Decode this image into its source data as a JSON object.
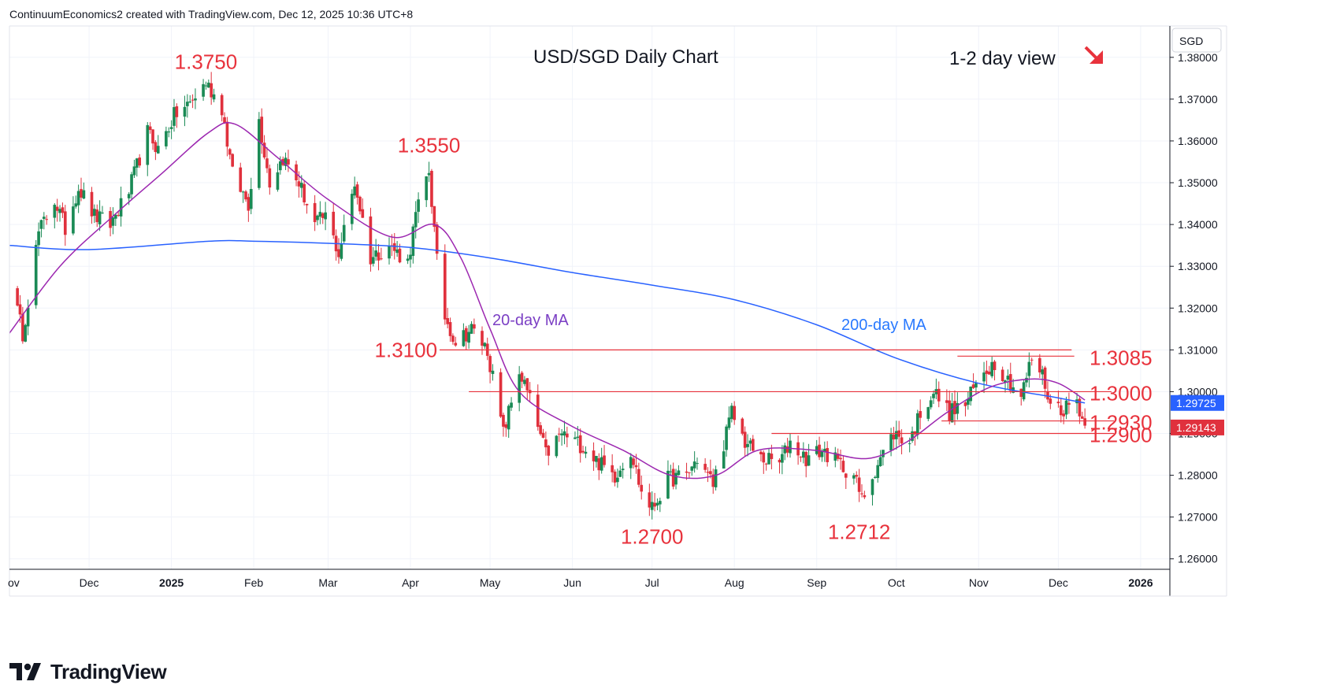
{
  "header": {
    "text": "ContinuumEconomics2 created with TradingView.com, Dec 12, 2025 10:36 UTC+8"
  },
  "footer": {
    "brand": "TradingView"
  },
  "colors": {
    "up": "#1a8a55",
    "down": "#e0313d",
    "ma20": "#9c27b0",
    "ma200": "#2962ff",
    "level": "#e8323c",
    "grid": "#f0f3fa"
  },
  "chart_data": {
    "type": "candlestick",
    "title": "USD/SGD Daily Chart",
    "view_label": "1-2 day view",
    "view_icon": "arrow-down-right-icon",
    "currency": "SGD",
    "ylim": [
      1.2575,
      1.3875
    ],
    "y_ticks": [
      "1.38000",
      "1.37000",
      "1.36000",
      "1.35000",
      "1.34000",
      "1.33000",
      "1.32000",
      "1.31000",
      "1.30000",
      "1.29000",
      "1.28000",
      "1.27000",
      "1.26000"
    ],
    "x_ticks": [
      "ov",
      "Dec",
      "2025",
      "Feb",
      "Mar",
      "Apr",
      "May",
      "Jun",
      "Jul",
      "Aug",
      "Sep",
      "Oct",
      "Nov",
      "Dec",
      "2026"
    ],
    "x_range": [
      "2024-11-01",
      "2026-01-12"
    ],
    "price_badges": [
      {
        "value": "1.29725",
        "color": "#2962ff"
      },
      {
        "value": "1.29143",
        "color": "#e0313d"
      }
    ],
    "levels": [
      {
        "label": "1.3100",
        "value": 1.31,
        "x_from": "2025-04-12",
        "x_to": "2025-12-06",
        "label_side": "left"
      },
      {
        "label": "1.3085",
        "value": 1.3085,
        "x_from": "2025-10-24",
        "x_to": "2025-12-07",
        "label_side": "right"
      },
      {
        "label": "1.3000",
        "value": 1.3,
        "x_from": "2025-04-23",
        "x_to": "2025-12-21",
        "label_side": "right"
      },
      {
        "label": "1.2930",
        "value": 1.293,
        "x_from": "2025-10-18",
        "x_to": "2025-12-22",
        "label_side": "right"
      },
      {
        "label": "1.2900",
        "value": 1.29,
        "x_from": "2025-08-15",
        "x_to": "2025-12-22",
        "label_side": "right"
      }
    ],
    "annotations": [
      {
        "label": "1.3750",
        "date": "2025-01-14",
        "value": 1.375
      },
      {
        "label": "1.3550",
        "date": "2025-04-08",
        "value": 1.355
      },
      {
        "label": "1.2700",
        "date": "2025-07-01",
        "value": 1.27
      },
      {
        "label": "1.2712",
        "date": "2025-09-17",
        "value": 1.2712
      }
    ],
    "series_labels": [
      {
        "name": "20-day MA",
        "color": "#7b3fc4"
      },
      {
        "name": "200-day MA",
        "color": "#2979ff"
      }
    ],
    "pivots": [
      [
        "2024-11-01",
        1.327
      ],
      [
        "2024-11-06",
        1.314
      ],
      [
        "2024-11-12",
        1.338
      ],
      [
        "2024-11-18",
        1.346
      ],
      [
        "2024-11-22",
        1.339
      ],
      [
        "2024-11-27",
        1.349
      ],
      [
        "2024-12-03",
        1.342
      ],
      [
        "2024-12-09",
        1.34
      ],
      [
        "2024-12-16",
        1.348
      ],
      [
        "2024-12-23",
        1.362
      ],
      [
        "2024-12-27",
        1.358
      ],
      [
        "2025-01-02",
        1.366
      ],
      [
        "2025-01-08",
        1.369
      ],
      [
        "2025-01-14",
        1.374
      ],
      [
        "2025-01-20",
        1.368
      ],
      [
        "2025-01-24",
        1.352
      ],
      [
        "2025-01-30",
        1.345
      ],
      [
        "2025-02-03",
        1.365
      ],
      [
        "2025-02-07",
        1.35
      ],
      [
        "2025-02-12",
        1.356
      ],
      [
        "2025-02-18",
        1.35
      ],
      [
        "2025-02-24",
        1.34
      ],
      [
        "2025-02-28",
        1.342
      ],
      [
        "2025-03-05",
        1.333
      ],
      [
        "2025-03-11",
        1.35
      ],
      [
        "2025-03-17",
        1.332
      ],
      [
        "2025-03-24",
        1.335
      ],
      [
        "2025-03-31",
        1.331
      ],
      [
        "2025-04-03",
        1.342
      ],
      [
        "2025-04-08",
        1.353
      ],
      [
        "2025-04-11",
        1.331
      ],
      [
        "2025-04-14",
        1.318
      ],
      [
        "2025-04-18",
        1.312
      ],
      [
        "2025-04-24",
        1.315
      ],
      [
        "2025-04-30",
        1.31
      ],
      [
        "2025-05-06",
        1.29
      ],
      [
        "2025-05-12",
        1.305
      ],
      [
        "2025-05-16",
        1.298
      ],
      [
        "2025-05-22",
        1.285
      ],
      [
        "2025-05-28",
        1.29
      ],
      [
        "2025-06-05",
        1.287
      ],
      [
        "2025-06-11",
        1.283
      ],
      [
        "2025-06-17",
        1.28
      ],
      [
        "2025-06-23",
        1.286
      ],
      [
        "2025-06-27",
        1.276
      ],
      [
        "2025-07-01",
        1.272
      ],
      [
        "2025-07-07",
        1.279
      ],
      [
        "2025-07-14",
        1.28
      ],
      [
        "2025-07-18",
        1.284
      ],
      [
        "2025-07-24",
        1.278
      ],
      [
        "2025-07-31",
        1.295
      ],
      [
        "2025-08-05",
        1.288
      ],
      [
        "2025-08-11",
        1.284
      ],
      [
        "2025-08-18",
        1.283
      ],
      [
        "2025-08-22",
        1.288
      ],
      [
        "2025-08-28",
        1.284
      ],
      [
        "2025-09-03",
        1.286
      ],
      [
        "2025-09-09",
        1.283
      ],
      [
        "2025-09-15",
        1.28
      ],
      [
        "2025-09-18",
        1.274
      ],
      [
        "2025-09-24",
        1.283
      ],
      [
        "2025-09-30",
        1.29
      ],
      [
        "2025-10-06",
        1.288
      ],
      [
        "2025-10-10",
        1.295
      ],
      [
        "2025-10-15",
        1.3
      ],
      [
        "2025-10-21",
        1.295
      ],
      [
        "2025-10-27",
        1.297
      ],
      [
        "2025-11-03",
        1.305
      ],
      [
        "2025-11-07",
        1.307
      ],
      [
        "2025-11-12",
        1.303
      ],
      [
        "2025-11-17",
        1.299
      ],
      [
        "2025-11-21",
        1.308
      ],
      [
        "2025-11-25",
        1.304
      ],
      [
        "2025-11-28",
        1.297
      ],
      [
        "2025-12-03",
        1.296
      ],
      [
        "2025-12-08",
        1.298
      ],
      [
        "2025-12-11",
        1.2915
      ]
    ],
    "ma20_points": [
      [
        "2024-11-01",
        1.314
      ],
      [
        "2024-11-20",
        1.33
      ],
      [
        "2024-12-10",
        1.342
      ],
      [
        "2024-12-28",
        1.352
      ],
      [
        "2025-01-15",
        1.362
      ],
      [
        "2025-01-25",
        1.364
      ],
      [
        "2025-02-10",
        1.356
      ],
      [
        "2025-03-01",
        1.346
      ],
      [
        "2025-03-25",
        1.337
      ],
      [
        "2025-04-10",
        1.34
      ],
      [
        "2025-04-20",
        1.332
      ],
      [
        "2025-05-01",
        1.315
      ],
      [
        "2025-05-12",
        1.3
      ],
      [
        "2025-05-31",
        1.292
      ],
      [
        "2025-06-20",
        1.286
      ],
      [
        "2025-07-08",
        1.28
      ],
      [
        "2025-07-25",
        1.28
      ],
      [
        "2025-08-10",
        1.286
      ],
      [
        "2025-08-31",
        1.286
      ],
      [
        "2025-09-20",
        1.284
      ],
      [
        "2025-10-05",
        1.288
      ],
      [
        "2025-10-20",
        1.295
      ],
      [
        "2025-11-05",
        1.301
      ],
      [
        "2025-11-20",
        1.303
      ],
      [
        "2025-12-01",
        1.302
      ],
      [
        "2025-12-11",
        1.298
      ]
    ],
    "ma200_points": [
      [
        "2024-11-01",
        1.335
      ],
      [
        "2024-12-01",
        1.334
      ],
      [
        "2025-01-15",
        1.336
      ],
      [
        "2025-02-01",
        1.336
      ],
      [
        "2025-03-01",
        1.3355
      ],
      [
        "2025-04-01",
        1.3345
      ],
      [
        "2025-05-01",
        1.332
      ],
      [
        "2025-06-01",
        1.3285
      ],
      [
        "2025-07-01",
        1.3255
      ],
      [
        "2025-08-01",
        1.322
      ],
      [
        "2025-09-01",
        1.316
      ],
      [
        "2025-10-01",
        1.308
      ],
      [
        "2025-11-01",
        1.302
      ],
      [
        "2025-12-01",
        1.2985
      ],
      [
        "2025-12-11",
        1.2973
      ]
    ]
  }
}
